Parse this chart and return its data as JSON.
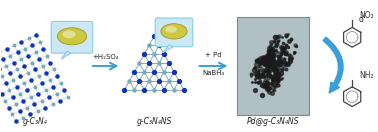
{
  "bg_color": "#ffffff",
  "labels": {
    "g_C3N4": "g-C₃N₄",
    "g_C3N4_NS": "g-C₃N₄NS",
    "Pd_g_C3N4_NS": "Pd@g-C₃N₄NS"
  },
  "reagents": {
    "step1": "+H₂SO₄",
    "step2_top": "+ Pd",
    "step2_bot": "NaBH₄"
  },
  "arrow_color": "#3a9fd4",
  "molecule_color": "#444444",
  "n_atom_blue": "#1133bb",
  "c_atom_teal": "#77aabb",
  "bond_color": "#88aabb",
  "powder_yellow": "#ccc840",
  "powder_light": "#e8e8b0",
  "bubble_color": "#cce8f4",
  "bubble_ec": "#88ccee",
  "tem_bg": "#b0c0c4",
  "tem_particle": "#1a1a1a",
  "label_fontsize": 5.5,
  "reagent_fontsize": 5.0,
  "mol_label_fontsize": 5.5
}
